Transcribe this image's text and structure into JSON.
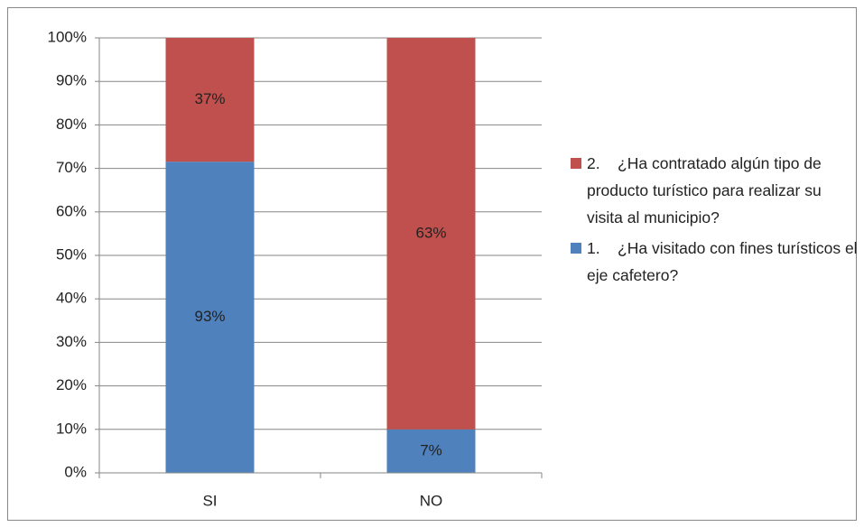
{
  "chart_data": {
    "type": "bar",
    "stacking": "percent",
    "categories": [
      "SI",
      "NO"
    ],
    "series": [
      {
        "name": "1.    ¿Ha visitado con fines turísticos el eje cafetero?",
        "color": "#4f81bd",
        "values": [
          93,
          7
        ],
        "value_labels": [
          "93%",
          "7%"
        ]
      },
      {
        "name": "2.    ¿Ha contratado algún tipo de producto turístico para realizar su visita al municipio?",
        "color": "#c0504d",
        "values": [
          37,
          63
        ],
        "value_labels": [
          "37%",
          "63%"
        ]
      }
    ],
    "ylim": [
      0,
      100
    ],
    "yticks": [
      {
        "value": 0,
        "label": "0%"
      },
      {
        "value": 10,
        "label": "10%"
      },
      {
        "value": 20,
        "label": "20%"
      },
      {
        "value": 30,
        "label": "30%"
      },
      {
        "value": 40,
        "label": "40%"
      },
      {
        "value": 50,
        "label": "50%"
      },
      {
        "value": 60,
        "label": "60%"
      },
      {
        "value": 70,
        "label": "70%"
      },
      {
        "value": 80,
        "label": "80%"
      },
      {
        "value": 90,
        "label": "90%"
      },
      {
        "value": 100,
        "label": "100%"
      }
    ],
    "grid": true,
    "legend": "right"
  }
}
